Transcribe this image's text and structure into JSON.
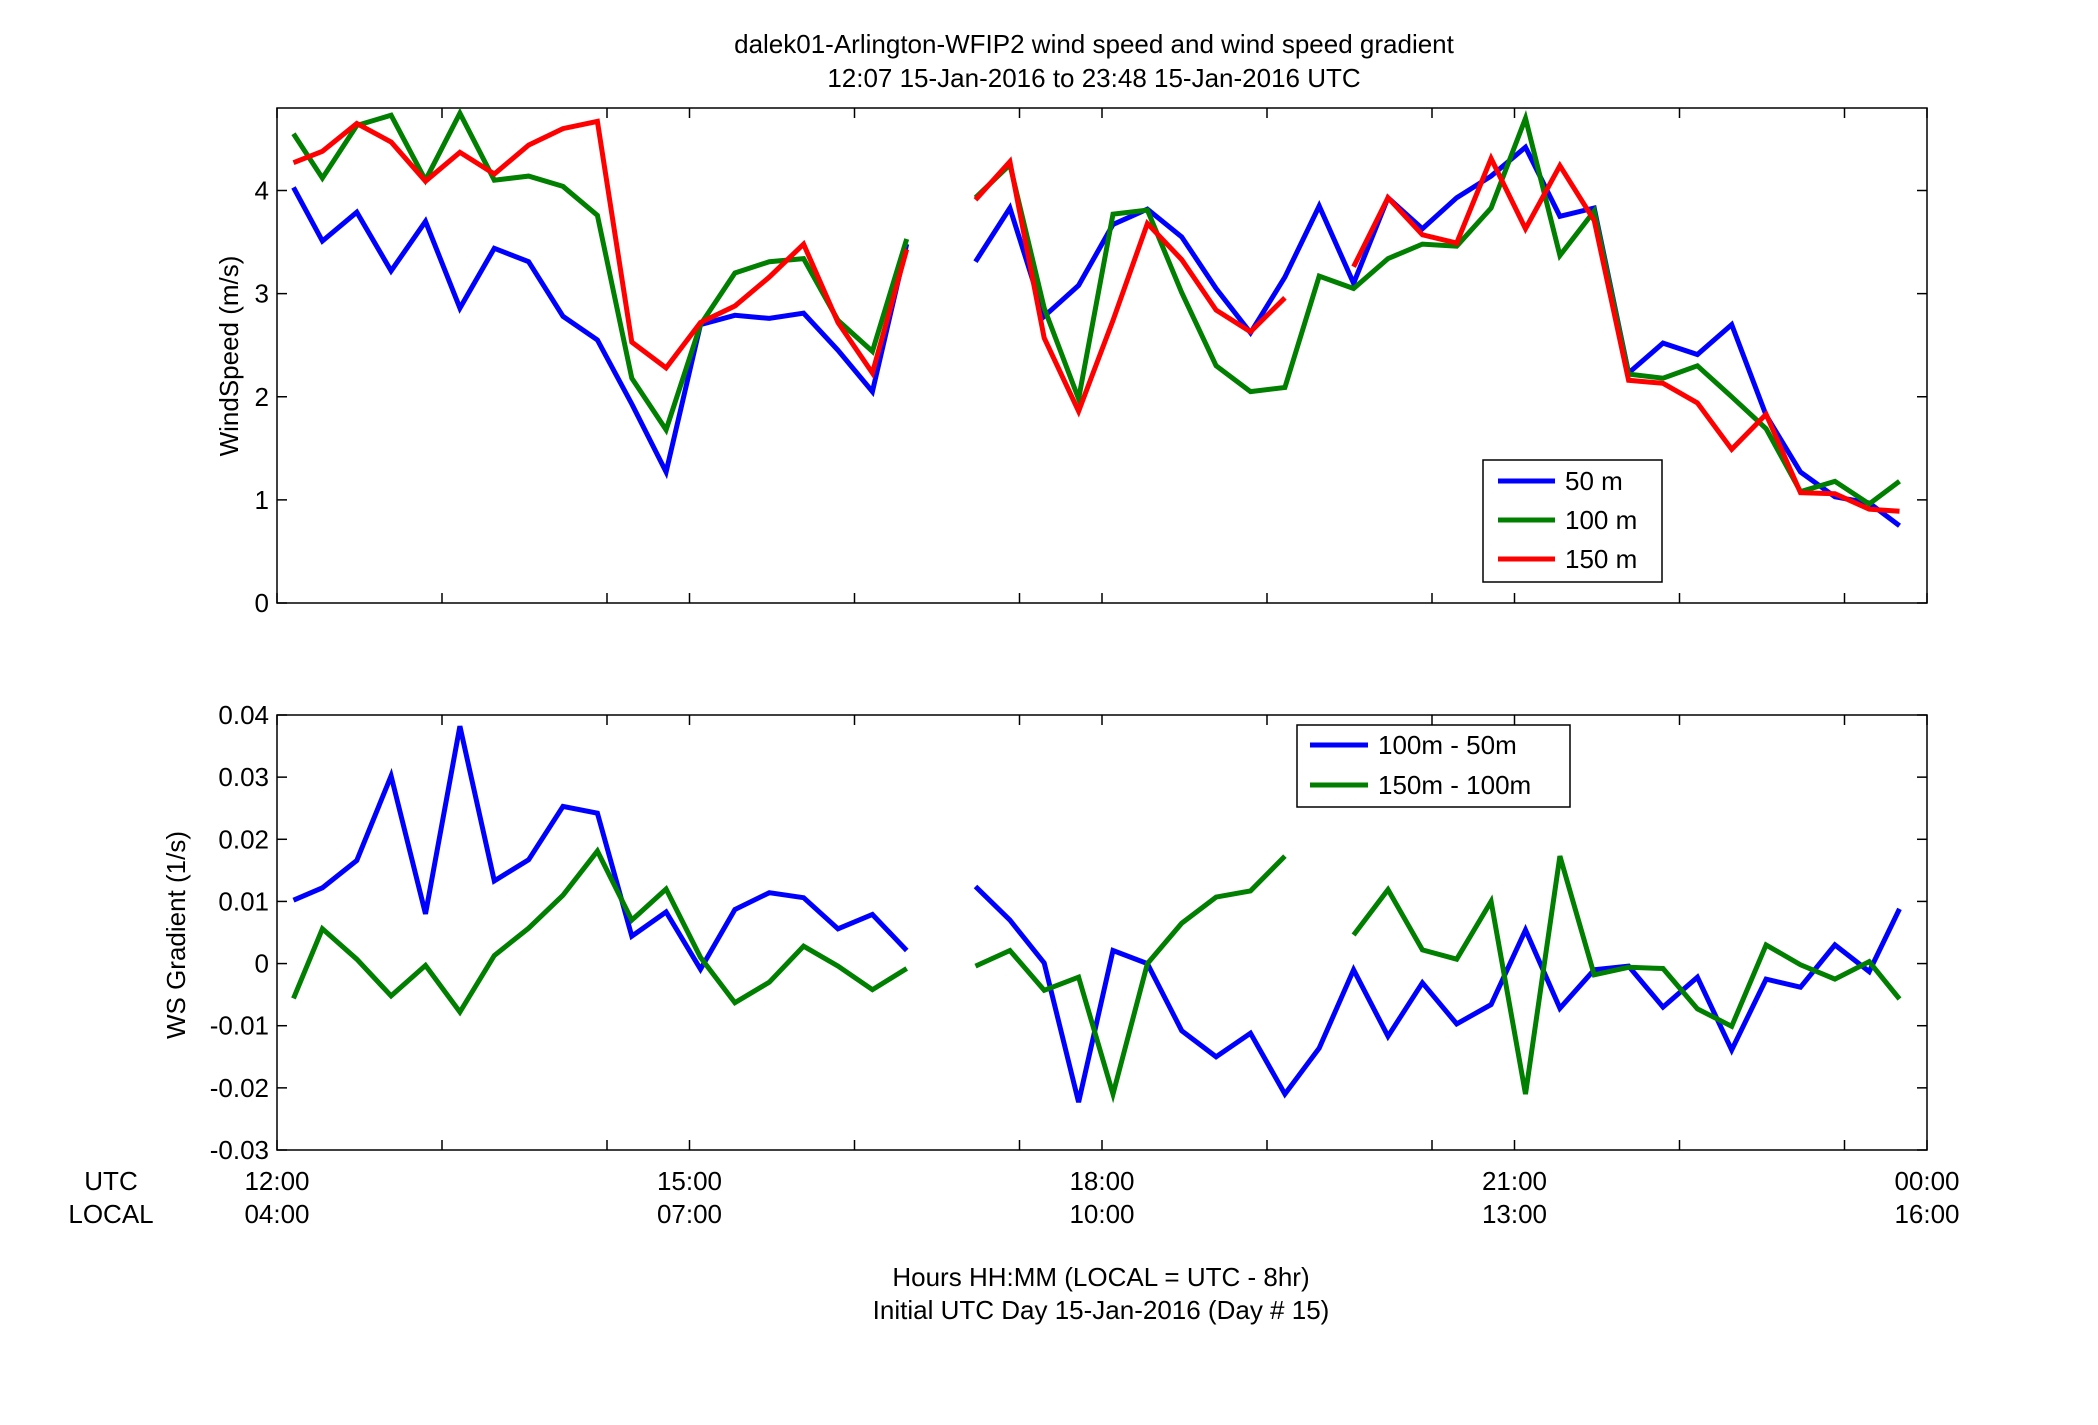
{
  "title_line1": "dalek01-Arlington-WFIP2  wind speed and wind speed gradient",
  "title_line2": "12:07 15-Jan-2016 to 23:48 15-Jan-2016  UTC",
  "x_axis": {
    "label_line1": "Hours HH:MM  (LOCAL = UTC - 8hr)",
    "label_line2": "Initial UTC Day 15-Jan-2016 (Day # 15)",
    "row_label_utc": "UTC",
    "row_label_local": "LOCAL",
    "utc_ticks": [
      "12:00",
      "15:00",
      "18:00",
      "21:00",
      "00:00"
    ],
    "local_ticks": [
      "04:00",
      "07:00",
      "10:00",
      "13:00",
      "16:00"
    ],
    "range_hours": [
      12,
      24
    ],
    "minor_tick_hours": [
      12,
      13.2,
      14.4,
      15,
      16.2,
      17.4,
      18,
      19.2,
      20.4,
      21,
      22.2,
      23.4,
      24
    ]
  },
  "chart_data": [
    {
      "type": "line",
      "ylabel": "WindSpeed (m/s)",
      "ylim": [
        0,
        4.8
      ],
      "yticks": [
        "0",
        "1",
        "2",
        "3",
        "4"
      ],
      "ytick_values": [
        0,
        1,
        2,
        3,
        4
      ],
      "legend_position": "lower-right",
      "x": [
        12.12,
        12.33,
        12.58,
        12.83,
        13.08,
        13.33,
        13.58,
        13.83,
        14.08,
        14.33,
        14.58,
        14.83,
        15.08,
        15.33,
        15.58,
        15.83,
        16.08,
        16.33,
        16.58,
        16.83,
        17.08,
        17.33,
        17.58,
        17.83,
        18.08,
        18.33,
        18.58,
        18.83,
        19.08,
        19.33,
        19.58,
        19.83,
        20.08,
        20.33,
        20.58,
        20.83,
        21.08,
        21.33,
        21.58,
        21.83,
        22.08,
        22.33,
        22.58,
        22.83,
        23.08,
        23.33,
        23.58,
        23.8
      ],
      "series": [
        {
          "name": "50 m",
          "color": "#0000ff",
          "values": [
            4.03,
            3.51,
            3.79,
            3.22,
            3.7,
            2.86,
            3.44,
            3.31,
            2.78,
            2.55,
            1.93,
            1.27,
            2.7,
            2.79,
            2.76,
            2.81,
            2.45,
            2.05,
            3.48,
            null,
            3.31,
            3.83,
            2.78,
            3.08,
            3.67,
            3.82,
            3.55,
            3.05,
            2.62,
            3.16,
            3.85,
            3.1,
            3.93,
            3.63,
            3.93,
            4.14,
            4.42,
            3.75,
            3.83,
            2.23,
            2.52,
            2.41,
            2.7,
            1.82,
            1.27,
            1.03,
            0.97,
            0.75
          ]
        },
        {
          "name": "100 m",
          "color": "#007f00",
          "values": [
            4.55,
            4.12,
            4.63,
            4.73,
            4.1,
            4.75,
            4.1,
            4.14,
            4.04,
            3.76,
            2.18,
            1.68,
            2.7,
            3.2,
            3.31,
            3.34,
            2.74,
            2.44,
            3.53,
            null,
            3.93,
            4.25,
            2.86,
            1.98,
            3.77,
            3.81,
            3.01,
            2.3,
            2.05,
            2.09,
            3.17,
            3.05,
            3.34,
            3.48,
            3.46,
            3.83,
            4.7,
            3.37,
            3.8,
            2.22,
            2.18,
            2.3,
            2.0,
            1.69,
            1.08,
            1.18,
            0.96,
            1.18
          ]
        },
        {
          "name": "150 m",
          "color": "#ff0000",
          "values": [
            4.27,
            4.38,
            4.65,
            4.47,
            4.09,
            4.37,
            4.16,
            4.44,
            4.6,
            4.67,
            2.53,
            2.28,
            2.72,
            2.88,
            3.16,
            3.48,
            2.72,
            2.23,
            3.43,
            null,
            3.91,
            4.28,
            2.57,
            1.86,
            2.74,
            3.68,
            3.33,
            2.84,
            2.63,
            2.96,
            null,
            3.26,
            3.93,
            3.57,
            3.49,
            4.31,
            3.63,
            4.24,
            3.71,
            2.16,
            2.13,
            1.94,
            1.49,
            1.83,
            1.07,
            1.06,
            0.91,
            0.89
          ]
        }
      ]
    },
    {
      "type": "line",
      "ylabel": "WS Gradient (1/s)",
      "ylim": [
        -0.03,
        0.04
      ],
      "yticks": [
        "-0.03",
        "-0.02",
        "-0.01",
        "0",
        "0.01",
        "0.02",
        "0.03",
        "0.04"
      ],
      "ytick_values": [
        -0.03,
        -0.02,
        -0.01,
        0,
        0.01,
        0.02,
        0.03,
        0.04
      ],
      "legend_position": "top-center",
      "x": [
        12.12,
        12.33,
        12.58,
        12.83,
        13.08,
        13.33,
        13.58,
        13.83,
        14.08,
        14.33,
        14.58,
        14.83,
        15.08,
        15.33,
        15.58,
        15.83,
        16.08,
        16.33,
        16.58,
        16.83,
        17.08,
        17.33,
        17.58,
        17.83,
        18.08,
        18.33,
        18.58,
        18.83,
        19.08,
        19.33,
        19.58,
        19.83,
        20.08,
        20.33,
        20.58,
        20.83,
        21.08,
        21.33,
        21.58,
        21.83,
        22.08,
        22.33,
        22.58,
        22.83,
        23.08,
        23.33,
        23.58,
        23.8
      ],
      "series": [
        {
          "name": "100m - 50m",
          "color": "#0000ff",
          "values": [
            0.0102,
            0.0122,
            0.0166,
            0.0302,
            0.008,
            0.0382,
            0.0133,
            0.0167,
            0.0253,
            0.0242,
            0.0044,
            0.0083,
            -0.0009,
            0.0087,
            0.0114,
            0.0106,
            0.0056,
            0.0079,
            0.0021,
            null,
            0.0124,
            0.007,
            0.0001,
            -0.0223,
            0.0021,
            0.0,
            -0.0108,
            -0.015,
            -0.0112,
            -0.021,
            -0.0136,
            -0.001,
            -0.0117,
            -0.0031,
            -0.0097,
            -0.0066,
            0.0054,
            -0.0072,
            -0.001,
            -0.0004,
            -0.007,
            -0.0022,
            -0.0139,
            -0.0025,
            -0.0038,
            0.003,
            -0.0013,
            0.0088
          ]
        },
        {
          "name": "150m - 100m",
          "color": "#007f00",
          "values": [
            -0.0056,
            0.0056,
            0.0007,
            -0.0052,
            -0.0003,
            -0.0078,
            0.0013,
            0.0057,
            0.011,
            0.0181,
            0.007,
            0.012,
            0.001,
            -0.0063,
            -0.003,
            0.0028,
            -0.0004,
            -0.0042,
            -0.0008,
            null,
            -0.0004,
            0.0021,
            -0.0043,
            -0.0022,
            -0.021,
            0.0,
            0.0065,
            0.0107,
            0.0117,
            0.0173,
            null,
            0.0046,
            0.0119,
            0.0022,
            0.0007,
            0.01,
            -0.021,
            0.0173,
            -0.0018,
            -0.0006,
            -0.0008,
            -0.0073,
            -0.0101,
            0.003,
            -0.0002,
            -0.0025,
            0.0003,
            -0.0057
          ]
        }
      ]
    }
  ]
}
